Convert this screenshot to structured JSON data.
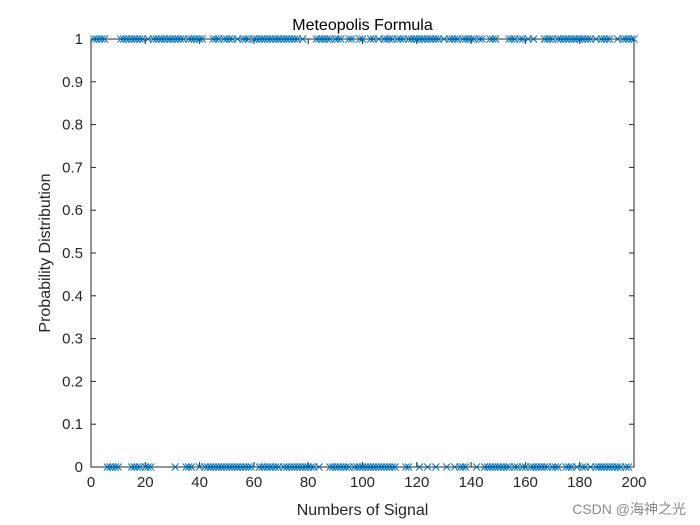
{
  "chart_data": {
    "type": "scatter",
    "title": "Meteopolis Formula",
    "xlabel": "Numbers of Signal",
    "ylabel": "Probability Distribution",
    "xlim": [
      0,
      200
    ],
    "ylim": [
      0,
      1
    ],
    "xticks": [
      0,
      20,
      40,
      60,
      80,
      100,
      120,
      140,
      160,
      180,
      200
    ],
    "yticks": [
      0,
      0.1,
      0.2,
      0.3,
      0.4,
      0.5,
      0.6,
      0.7,
      0.8,
      0.9,
      1
    ],
    "xtick_labels": [
      "0",
      "20",
      "40",
      "60",
      "80",
      "100",
      "120",
      "140",
      "160",
      "180",
      "200"
    ],
    "ytick_labels": [
      "0",
      "0.1",
      "0.2",
      "0.3",
      "0.4",
      "0.5",
      "0.6",
      "0.7",
      "0.8",
      "0.9",
      "1"
    ],
    "marker": "x",
    "grid": false,
    "color": "#0072BD",
    "series": [
      {
        "values_at_1": [
          1,
          2,
          3,
          4,
          5,
          11,
          12,
          13,
          14,
          15,
          16,
          17,
          18,
          19,
          21,
          23,
          24,
          25,
          26,
          27,
          28,
          29,
          30,
          31,
          32,
          33,
          34,
          36,
          37,
          38,
          39,
          40,
          41,
          45,
          46,
          47,
          49,
          50,
          51,
          52,
          54,
          56,
          57,
          58,
          60,
          61,
          62,
          63,
          64,
          65,
          66,
          67,
          68,
          69,
          70,
          71,
          72,
          73,
          74,
          75,
          76,
          78,
          83,
          84,
          85,
          86,
          87,
          88,
          90,
          91,
          92,
          95,
          96,
          99,
          100,
          103,
          104,
          106,
          108,
          109,
          110,
          111,
          113,
          114,
          115,
          117,
          118,
          119,
          120,
          121,
          122,
          123,
          124,
          125,
          126,
          127,
          128,
          130,
          132,
          133,
          134,
          135,
          137,
          138,
          139,
          140,
          141,
          143,
          144,
          147,
          148,
          149,
          154,
          155,
          156,
          158,
          159,
          161,
          163,
          167,
          168,
          169,
          170,
          172,
          173,
          174,
          175,
          176,
          177,
          178,
          179,
          180,
          181,
          182,
          183,
          184,
          186,
          188,
          189,
          190,
          191,
          194,
          196,
          197,
          198,
          199,
          200
        ],
        "values_at_0": [
          6,
          7,
          8,
          9,
          10,
          15,
          16,
          17,
          18,
          20,
          21,
          22,
          31,
          35,
          36,
          37,
          40,
          42,
          43,
          44,
          45,
          46,
          47,
          48,
          49,
          50,
          51,
          52,
          53,
          54,
          55,
          56,
          57,
          58,
          59,
          62,
          63,
          64,
          65,
          66,
          67,
          68,
          69,
          71,
          72,
          73,
          74,
          75,
          76,
          77,
          78,
          79,
          80,
          81,
          82,
          84,
          88,
          89,
          90,
          91,
          92,
          93,
          94,
          95,
          97,
          98,
          99,
          100,
          101,
          102,
          103,
          104,
          105,
          106,
          107,
          108,
          109,
          110,
          111,
          112,
          116,
          117,
          121,
          124,
          127,
          131,
          134,
          136,
          137,
          138,
          142,
          145,
          146,
          147,
          148,
          149,
          150,
          151,
          152,
          153,
          154,
          156,
          157,
          159,
          160,
          162,
          163,
          164,
          165,
          166,
          167,
          168,
          170,
          171,
          172,
          175,
          176,
          177,
          179,
          181,
          182,
          184,
          186,
          187,
          188,
          189,
          190,
          191,
          192,
          193,
          194,
          195,
          197,
          198
        ]
      }
    ]
  },
  "watermark": "CSDN @海神之光"
}
